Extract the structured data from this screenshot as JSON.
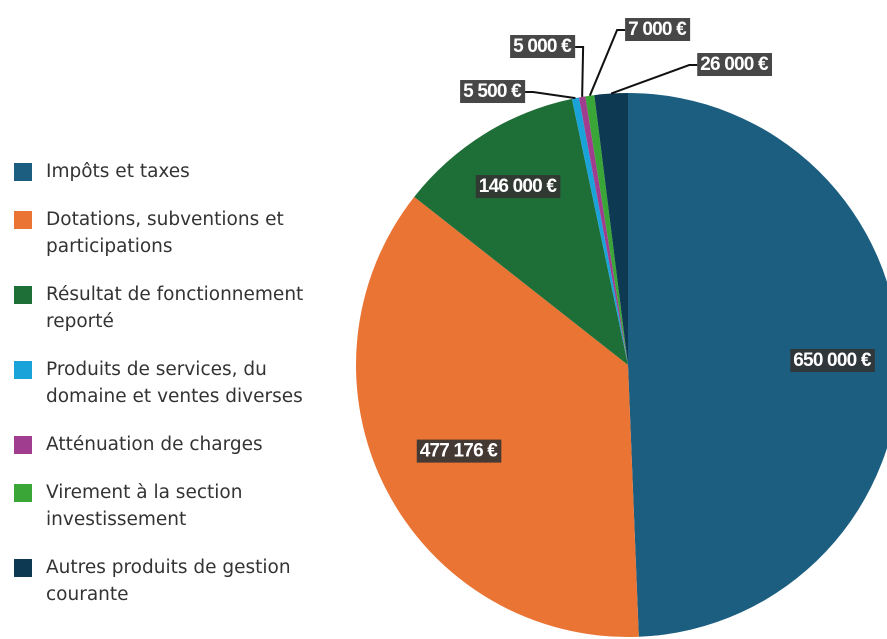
{
  "chart_data": {
    "type": "pie",
    "categories": [
      "Impôts et taxes",
      "Dotations, subventions et participations",
      "Résultat de fonctionnement reporté",
      "Produits de services, du domaine et ventes diverses",
      "Atténuation de charges",
      "Virement à la section investissement",
      "Autres produits de gestion courante"
    ],
    "values": [
      650000,
      477176,
      146000,
      5500,
      5000,
      7000,
      26000
    ],
    "value_labels": [
      "650 000 €",
      "477 176 €",
      "146 000 €",
      "5 500 €",
      "5 000 €",
      "7 000 €",
      "26 000 €"
    ],
    "colors": [
      "#1b5e80",
      "#e97434",
      "#1e6e37",
      "#1aa3d8",
      "#a03d8e",
      "#3aa637",
      "#0d3a52"
    ],
    "legend": "left"
  }
}
